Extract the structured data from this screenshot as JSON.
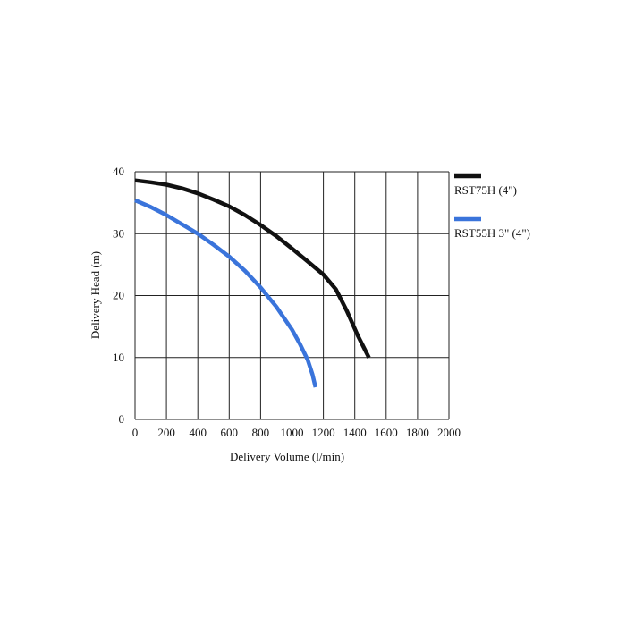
{
  "chart_data": {
    "type": "line",
    "title": "",
    "xlabel": "Delivery Volume (l/min)",
    "ylabel": "Delivery Head (m)",
    "xlim": [
      0,
      2000
    ],
    "ylim": [
      0,
      40
    ],
    "xticks": [
      "0",
      "200",
      "400",
      "600",
      "800",
      "1000",
      "1200",
      "1400",
      "1600",
      "1800",
      "2000"
    ],
    "yticks": [
      "0",
      "10",
      "20",
      "30",
      "40"
    ],
    "grid": true,
    "legend_position": "right",
    "series": [
      {
        "name": "RST75H (4\")",
        "color": "#111111",
        "x": [
          0,
          100,
          200,
          300,
          400,
          500,
          600,
          700,
          800,
          900,
          1000,
          1100,
          1200,
          1280,
          1350,
          1420,
          1490
        ],
        "y": [
          38.6,
          38.3,
          37.9,
          37.3,
          36.5,
          35.5,
          34.4,
          33.0,
          31.4,
          29.6,
          27.6,
          25.5,
          23.4,
          21.0,
          17.5,
          13.5,
          10.0
        ]
      },
      {
        "name": "RST55H 3\" (4\")",
        "color": "#3a74db",
        "x": [
          0,
          100,
          200,
          300,
          400,
          500,
          600,
          700,
          800,
          900,
          1000,
          1050,
          1100,
          1130,
          1150
        ],
        "y": [
          35.4,
          34.3,
          33.0,
          31.5,
          30.0,
          28.2,
          26.3,
          24.0,
          21.3,
          18.2,
          14.5,
          12.2,
          9.6,
          7.3,
          5.2
        ]
      }
    ]
  }
}
